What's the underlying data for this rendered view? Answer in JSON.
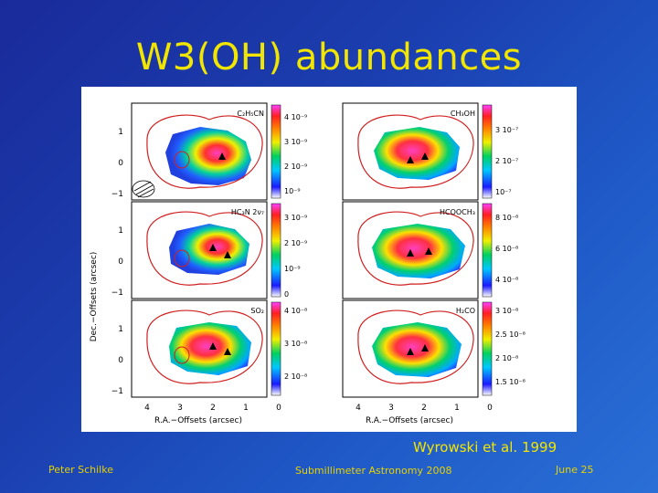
{
  "slide": {
    "title": "W3(OH) abundances",
    "citation": "Wyrowski et al. 1999",
    "footer_left": "Peter Schilke",
    "footer_center": "Submillimeter Astronomy 2008",
    "footer_right": "June 25"
  },
  "figure": {
    "y_axis_label": "Dec.−Offsets (arcsec)",
    "x_axis_label": "R.A.−Offsets (arcsec)",
    "y_ticks": [
      "1",
      "0",
      "−1"
    ],
    "x_ticks": [
      "4",
      "3",
      "2",
      "1",
      "0"
    ],
    "panels": [
      {
        "molecule": "C₂H₅CN",
        "scale": [
          "4 10⁻⁹",
          "3 10⁻⁹",
          "2 10⁻⁹",
          "10⁻⁹"
        ]
      },
      {
        "molecule": "CH₃OH",
        "scale": [
          "3 10⁻⁷",
          "2 10⁻⁷",
          "10⁻⁷"
        ]
      },
      {
        "molecule": "HC₃N 2ν₇",
        "scale": [
          "3 10⁻⁹",
          "2 10⁻⁹",
          "10⁻⁹",
          "0"
        ]
      },
      {
        "molecule": "HCOOCH₃",
        "scale": [
          "8 10⁻⁸",
          "6 10⁻⁸",
          "4 10⁻⁸"
        ]
      },
      {
        "molecule": "SO₂",
        "scale": [
          "4 10⁻⁸",
          "3 10⁻⁸",
          "2 10⁻⁸"
        ]
      },
      {
        "molecule": "H₂CO",
        "scale": [
          "3 10⁻⁸",
          "2.5 10⁻⁸",
          "2 10⁻⁸",
          "1.5 10⁻⁸"
        ]
      }
    ]
  }
}
